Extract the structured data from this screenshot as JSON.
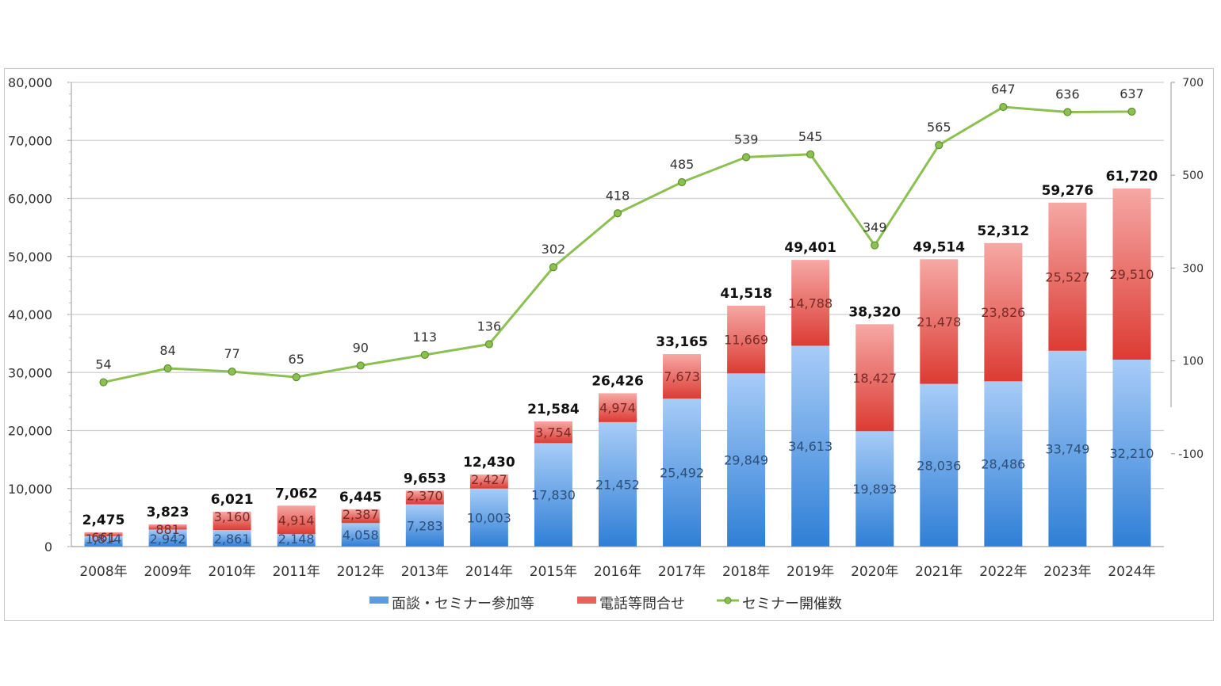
{
  "chart_data": {
    "type": "bar",
    "stacked": true,
    "categories": [
      "2008年",
      "2009年",
      "2010年",
      "2011年",
      "2012年",
      "2013年",
      "2014年",
      "2015年",
      "2016年",
      "2017年",
      "2018年",
      "2019年",
      "2020年",
      "2021年",
      "2022年",
      "2023年",
      "2024年"
    ],
    "series": [
      {
        "name": "面談・セミナー参加等",
        "type": "bar",
        "axis": "left",
        "color": "#5b9be0",
        "values": [
          1814,
          2942,
          2861,
          2148,
          4058,
          7283,
          10003,
          17830,
          21452,
          25492,
          29849,
          34613,
          19893,
          28036,
          28486,
          33749,
          32210
        ]
      },
      {
        "name": "電話等問合せ",
        "type": "bar",
        "axis": "left",
        "color": "#e8625d",
        "values": [
          661,
          881,
          3160,
          4914,
          2387,
          2370,
          2427,
          3754,
          4974,
          7673,
          11669,
          14788,
          18427,
          21478,
          23826,
          25527,
          29510
        ]
      },
      {
        "name": "セミナー開催数",
        "type": "line",
        "axis": "right",
        "color": "#8cc152",
        "values": [
          54,
          84,
          77,
          65,
          90,
          113,
          136,
          302,
          418,
          485,
          539,
          545,
          349,
          565,
          647,
          636,
          637
        ]
      }
    ],
    "totals": [
      "2,475",
      "3,823",
      "6,021",
      "7,062",
      "6,445",
      "9,653",
      "12,430",
      "21,584",
      "26,426",
      "33,165",
      "41,518",
      "49,401",
      "38,320",
      "49,514",
      "52,312",
      "59,276",
      "61,720"
    ],
    "blue_labels": [
      "1,814",
      "2,942",
      "2,861",
      "2,148",
      "4,058",
      "7,283",
      "10,003",
      "17,830",
      "21,452",
      "25,492",
      "29,849",
      "34,613",
      "19,893",
      "28,036",
      "28,486",
      "33,749",
      "32,210"
    ],
    "red_labels": [
      "661",
      "881",
      "3,160",
      "4,914",
      "2,387",
      "2,370",
      "2,427",
      "3,754",
      "4,974",
      "7,673",
      "11,669",
      "14,788",
      "18,427",
      "21,478",
      "23,826",
      "25,527",
      "29,510"
    ],
    "line_labels": [
      "54",
      "84",
      "77",
      "65",
      "90",
      "113",
      "136",
      "302",
      "418",
      "485",
      "539",
      "545",
      "349",
      "565",
      "647",
      "636",
      "637"
    ],
    "y_left": {
      "min": 0,
      "max": 80000,
      "ticks": [
        0,
        10000,
        20000,
        30000,
        40000,
        50000,
        60000,
        70000,
        80000
      ],
      "tick_labels": [
        "0",
        "10,000",
        "20,000",
        "30,000",
        "40,000",
        "50,000",
        "60,000",
        "70,000",
        "80,000"
      ]
    },
    "y_right": {
      "min": -300,
      "max": 700,
      "ticks": [
        -100,
        100,
        300,
        500,
        700
      ],
      "tick_labels": [
        "-100",
        "100",
        "300",
        "500",
        "700"
      ]
    },
    "grid": true,
    "legend_position": "bottom",
    "legend": [
      "面談・セミナー参加等",
      "電話等問合せ",
      "セミナー開催数"
    ]
  }
}
